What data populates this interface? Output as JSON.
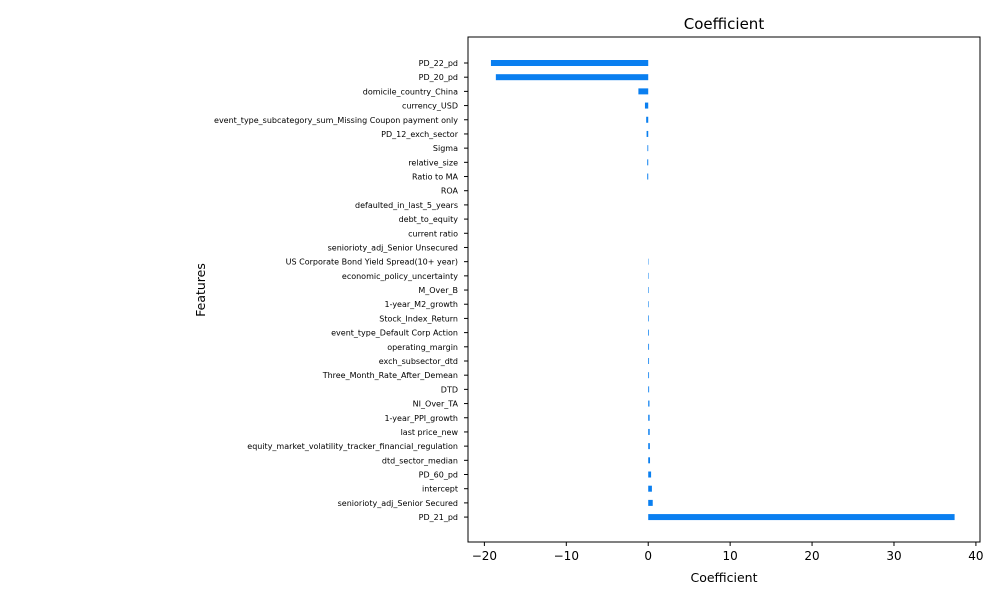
{
  "chart_data": {
    "type": "bar",
    "orientation": "horizontal",
    "title": "Coefficient",
    "xlabel": "Coefficient",
    "ylabel": "Features",
    "xlim": [
      -22,
      40.5
    ],
    "xticks": [
      -20,
      -10,
      0,
      10,
      20,
      30,
      40
    ],
    "xtick_labels": [
      "−20",
      "−10",
      "0",
      "10",
      "20",
      "30",
      "40"
    ],
    "grid": false,
    "legend": "none",
    "bar_color": "#0a7ff0",
    "categories": [
      "PD_22_pd",
      "PD_20_pd",
      "domicile_country_China",
      "currency_USD",
      "event_type_subcategory_sum_Missing Coupon payment only",
      "PD_12_exch_sector",
      "Sigma",
      "relative_size",
      "Ratio to MA",
      "ROA",
      "defaulted_in_last_5_years",
      "debt_to_equity",
      "current ratio",
      "seniorioty_adj_Senior Unsecured",
      "US Corporate Bond Yield Spread(10+ year)",
      "economic_policy_uncertainty",
      "M_Over_B",
      "1-year_M2_growth",
      "Stock_Index_Return",
      "event_type_Default Corp Action",
      "operating_margin",
      "exch_subsector_dtd",
      "Three_Month_Rate_After_Demean",
      "DTD",
      "NI_Over_TA",
      "1-year_PPI_growth",
      "last price_new",
      "equity_market_volatility_tracker_financial_regulation",
      "dtd_sector_median",
      "PD_60_pd",
      "intercept",
      "seniorioty_adj_Senior Secured",
      "PD_21_pd"
    ],
    "values": [
      -19.2,
      -18.6,
      -1.2,
      -0.4,
      -0.25,
      -0.2,
      -0.1,
      -0.12,
      -0.12,
      0.0,
      0.0,
      0.0,
      0.0,
      0.0,
      0.05,
      0.06,
      0.07,
      0.07,
      0.08,
      0.09,
      0.1,
      0.1,
      0.1,
      0.11,
      0.15,
      0.17,
      0.18,
      0.2,
      0.22,
      0.35,
      0.45,
      0.55,
      37.4
    ]
  }
}
